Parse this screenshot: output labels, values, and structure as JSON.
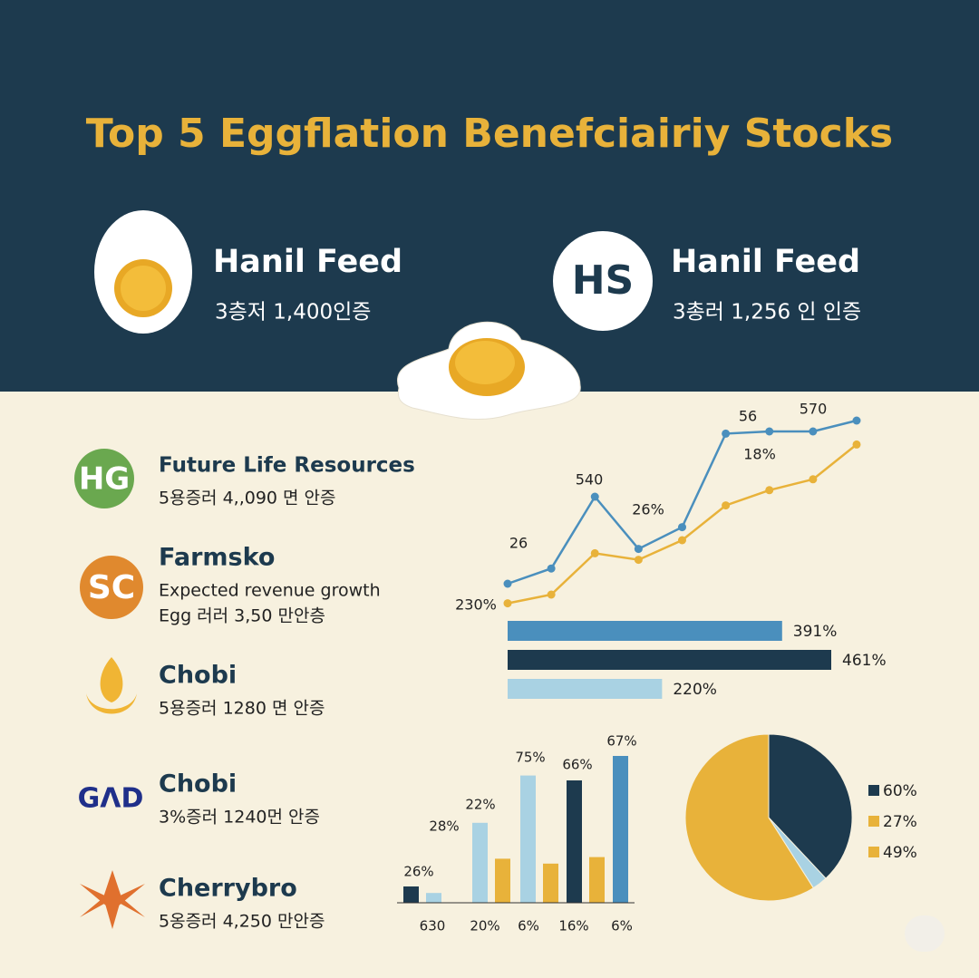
{
  "title": "Top 5 Eggflation Benefciairiy Stocks",
  "featured": [
    {
      "logo": null,
      "name": "Hanil Feed",
      "detail": "3층저 1,400인증"
    },
    {
      "logo": "HS",
      "name": "Hanil Feed",
      "detail": "3총러 1,256 인 인증"
    }
  ],
  "companies": [
    {
      "logo": "HG",
      "name": "Future Life Resources",
      "lines": [
        "5용증러 4,,090 면 안증"
      ]
    },
    {
      "logo": "SC",
      "name": "Farmsko",
      "lines": [
        "Expected revenue growth",
        "Egg 러러 3,50 만안층"
      ]
    },
    {
      "logo": null,
      "name": "Chobi",
      "lines": [
        "5용증러 1280 면  안증"
      ]
    },
    {
      "logo": "GΛD",
      "name": "Chobi",
      "lines": [
        "3%증러 1240먼 안증"
      ]
    },
    {
      "logo": null,
      "name": "Cherrybro",
      "lines": [
        "5옹증러 4,250 만안증"
      ]
    }
  ],
  "chart_data": [
    {
      "type": "line",
      "categories": [
        null,
        null,
        null,
        null,
        null,
        null,
        null,
        null,
        null
      ],
      "ylim": [
        0,
        100
      ],
      "series": [
        {
          "color": "#4a8fbd",
          "values": [
            15,
            22,
            55,
            31,
            41,
            84,
            85,
            85,
            90
          ]
        },
        {
          "color": "#e8b23a",
          "values": [
            6,
            10,
            29,
            26,
            35,
            51,
            58,
            63,
            79
          ]
        }
      ],
      "annotations": [
        "26",
        "540",
        "26%",
        "56",
        "570",
        "18%",
        "230%"
      ]
    },
    {
      "type": "hbar",
      "values": [
        391,
        461,
        220
      ],
      "value_labels": [
        "391%",
        "461%",
        "220%"
      ],
      "colors": [
        "#4a8fbd",
        "#1d3a4e",
        "#a9d2e3"
      ],
      "xlim": [
        0,
        461
      ]
    },
    {
      "type": "bar",
      "categories": [
        "630",
        "20%",
        "6%",
        "16%",
        "6%"
      ],
      "ylim": [
        0,
        100
      ],
      "series": [
        {
          "values": [
            10,
            49,
            78,
            75,
            90
          ],
          "colors": [
            "#1d3a4e",
            "#a9d2e3",
            "#a9d2e3",
            "#1d3a4e",
            "#4a8fbd"
          ]
        },
        {
          "values": [
            6,
            27,
            24,
            28,
            null
          ],
          "colors": [
            "#a9d2e3",
            "#e8b23a",
            "#e8b23a",
            "#e8b23a",
            "#e8b23a"
          ]
        }
      ],
      "annotations": [
        "26%",
        "28%",
        "22%",
        "75%",
        "66%",
        "67%"
      ]
    },
    {
      "type": "pie",
      "values": [
        38,
        3,
        59
      ],
      "colors": [
        "#1d3a4e",
        "#a9d2e3",
        "#e8b23a"
      ],
      "legend": [
        {
          "name": "60%",
          "color": "#1d3a4e"
        },
        {
          "name": "27%",
          "color": "#e8b23a"
        },
        {
          "name": "49%",
          "color": "#e8b23a"
        }
      ]
    }
  ]
}
